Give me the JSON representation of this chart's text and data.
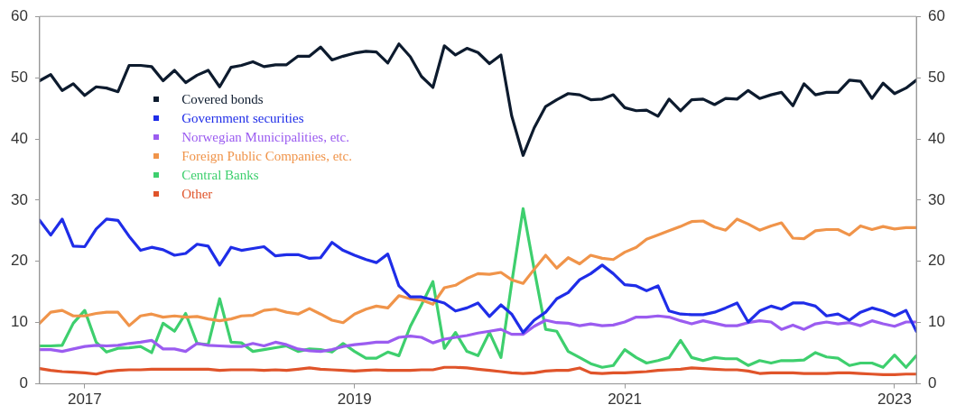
{
  "chart_data": {
    "type": "line",
    "legend": "top left",
    "marker": "none",
    "line_style": "solid",
    "grid": false,
    "x": [
      "2016-09",
      "2016-10",
      "2016-11",
      "2016-12",
      "2017-01",
      "2017-02",
      "2017-03",
      "2017-04",
      "2017-05",
      "2017-06",
      "2017-07",
      "2017-08",
      "2017-09",
      "2017-10",
      "2017-11",
      "2017-12",
      "2018-01",
      "2018-02",
      "2018-03",
      "2018-04",
      "2018-05",
      "2018-06",
      "2018-07",
      "2018-08",
      "2018-09",
      "2018-10",
      "2018-11",
      "2018-12",
      "2019-01",
      "2019-02",
      "2019-03",
      "2019-04",
      "2019-05",
      "2019-06",
      "2019-07",
      "2019-08",
      "2019-09",
      "2019-10",
      "2019-11",
      "2019-12",
      "2020-01",
      "2020-02",
      "2020-03",
      "2020-04",
      "2020-05",
      "2020-06",
      "2020-07",
      "2020-08",
      "2020-09",
      "2020-10",
      "2020-11",
      "2020-12",
      "2021-01",
      "2021-02",
      "2021-03",
      "2021-04",
      "2021-05",
      "2021-06",
      "2021-07",
      "2021-08",
      "2021-09",
      "2021-10",
      "2021-11",
      "2021-12",
      "2022-01",
      "2022-02",
      "2022-03",
      "2022-04",
      "2022-05",
      "2022-06",
      "2022-07",
      "2022-08",
      "2022-09",
      "2022-10",
      "2022-11",
      "2022-12",
      "2023-01",
      "2023-02",
      "2023-03"
    ],
    "xlim": [
      "2016-09",
      "2023-03"
    ],
    "xticks": [
      {
        "value": "2017-01",
        "label": "2017"
      },
      {
        "value": "2019-01",
        "label": "2019"
      },
      {
        "value": "2021-01",
        "label": "2021"
      },
      {
        "value": "2023-01",
        "label": "2023"
      }
    ],
    "ylim": [
      0,
      60
    ],
    "yticks": [
      0,
      10,
      20,
      30,
      40,
      50,
      60
    ],
    "y2lim": [
      0,
      60
    ],
    "y2ticks": [
      0,
      10,
      20,
      30,
      40,
      50,
      60
    ],
    "series": [
      {
        "name": "Covered bonds",
        "color": "#0d1b2e",
        "values": [
          49.5,
          50.5,
          47.9,
          49,
          47.1,
          48.5,
          48.3,
          47.7,
          52,
          52,
          51.8,
          49.5,
          51.2,
          49.2,
          50.4,
          51.2,
          48.5,
          51.7,
          52,
          52.6,
          51.8,
          52.1,
          52.1,
          53.5,
          53.5,
          55,
          52.9,
          53.5,
          54.0,
          54.3,
          54.2,
          52.4,
          55.5,
          53.4,
          50.2,
          48.4,
          55.2,
          53.7,
          54.8,
          54.1,
          52.3,
          53.7,
          43.8,
          37.3,
          41.8,
          45.3,
          46.4,
          47.4,
          47.2,
          46.4,
          46.5,
          47.2,
          45.1,
          44.6,
          44.7,
          43.7,
          46.5,
          44.6,
          46.4,
          46.5,
          45.6,
          46.6,
          46.5,
          47.9,
          46.6,
          47.2,
          47.6,
          45.4,
          49.0,
          47.2,
          47.6,
          47.6,
          49.6,
          49.4,
          46.6,
          49.1,
          47.4,
          48.3,
          49.6
        ]
      },
      {
        "name": "Government securities",
        "color": "#1f2de8",
        "values": [
          26.7,
          24.3,
          26.9,
          22.5,
          22.4,
          25.3,
          26.9,
          26.7,
          24.1,
          21.8,
          22.3,
          21.9,
          21.0,
          21.3,
          22.8,
          22.5,
          19.4,
          22.3,
          21.8,
          22.1,
          22.4,
          20.9,
          21.1,
          21.1,
          20.5,
          20.6,
          23.1,
          21.8,
          21.0,
          20.3,
          19.8,
          21.2,
          16.0,
          14.2,
          14.2,
          13.7,
          13.2,
          11.9,
          12.4,
          13.2,
          11.0,
          12.9,
          11.4,
          8.4,
          10.4,
          11.7,
          13.9,
          14.9,
          17.0,
          18.0,
          19.4,
          18.0,
          16.2,
          16.0,
          15.2,
          16.0,
          11.9,
          11.4,
          11.3,
          11.3,
          11.7,
          12.4,
          13.2,
          10.1,
          11.9,
          12.7,
          12.2,
          13.2,
          13.2,
          12.7,
          11.1,
          11.4,
          10.4,
          11.7,
          12.4,
          11.9,
          11.1,
          12.0,
          8.6
        ]
      },
      {
        "name": "Norwegian Municipalities, etc.",
        "color": "#9b5cf0",
        "values": [
          5.6,
          5.6,
          5.3,
          5.7,
          6.1,
          6.3,
          6.2,
          6.3,
          6.6,
          6.8,
          7.1,
          5.7,
          5.7,
          5.3,
          6.6,
          6.3,
          6.2,
          6.1,
          6.1,
          6.6,
          6.2,
          6.8,
          6.4,
          5.7,
          5.4,
          5.3,
          5.6,
          6.1,
          6.4,
          6.6,
          6.8,
          6.8,
          7.6,
          7.8,
          7.6,
          6.7,
          7.3,
          7.6,
          7.9,
          8.3,
          8.6,
          8.9,
          8.1,
          8.1,
          9.4,
          10.4,
          10.0,
          9.9,
          9.5,
          9.8,
          9.5,
          9.6,
          10.1,
          10.9,
          10.9,
          11.1,
          10.9,
          10.3,
          9.8,
          10.3,
          9.9,
          9.5,
          9.5,
          10.0,
          10.3,
          10.1,
          8.9,
          9.6,
          8.9,
          9.8,
          10.1,
          9.8,
          10.0,
          9.5,
          10.3,
          9.8,
          9.4,
          10.1,
          10.1
        ]
      },
      {
        "name": "Foreign Public Companies, etc.",
        "color": "#f0944a",
        "values": [
          9.9,
          11.7,
          12.0,
          11.1,
          11.1,
          11.5,
          11.7,
          11.7,
          9.5,
          11.1,
          11.4,
          10.9,
          11.1,
          10.9,
          11.0,
          10.6,
          10.3,
          10.6,
          11.1,
          11.2,
          12.0,
          12.2,
          11.7,
          11.4,
          12.3,
          11.4,
          10.4,
          10.0,
          11.4,
          12.2,
          12.7,
          12.4,
          14.4,
          13.9,
          13.7,
          13.0,
          15.7,
          16.1,
          17.2,
          18.0,
          17.9,
          18.2,
          17.0,
          16.4,
          18.7,
          21.0,
          18.9,
          20.6,
          19.6,
          21.0,
          20.5,
          20.3,
          21.5,
          22.3,
          23.6,
          24.3,
          25.0,
          25.7,
          26.5,
          26.6,
          25.6,
          25.1,
          26.9,
          26.1,
          25.1,
          25.8,
          26.3,
          23.8,
          23.7,
          25.0,
          25.2,
          25.2,
          24.3,
          25.8,
          25.2,
          25.7,
          25.3,
          25.5,
          25.5
        ]
      },
      {
        "name": "Central Banks",
        "color": "#3ecf6e",
        "values": [
          6.2,
          6.2,
          6.3,
          9.9,
          12.0,
          6.8,
          5.2,
          5.8,
          5.9,
          6.1,
          5.1,
          9.9,
          8.6,
          11.5,
          6.6,
          6.4,
          13.9,
          6.8,
          6.7,
          5.3,
          5.6,
          5.9,
          6.2,
          5.3,
          5.7,
          5.6,
          5.2,
          6.6,
          5.3,
          4.2,
          4.2,
          5.2,
          4.6,
          9.4,
          12.9,
          16.7,
          5.8,
          8.4,
          5.3,
          4.6,
          8.4,
          4.3,
          16.4,
          28.6,
          18.7,
          8.9,
          8.6,
          5.3,
          4.3,
          3.3,
          2.7,
          3.0,
          5.6,
          4.3,
          3.4,
          3.8,
          4.3,
          7.1,
          4.3,
          3.8,
          4.3,
          4.1,
          4.1,
          3.0,
          3.8,
          3.4,
          3.8,
          3.8,
          3.9,
          5.1,
          4.4,
          4.2,
          3.0,
          3.4,
          3.4,
          2.7,
          4.7,
          2.7,
          4.6
        ]
      },
      {
        "name": "Other",
        "color": "#e0542a",
        "values": [
          2.5,
          2.2,
          2.0,
          1.9,
          1.8,
          1.6,
          2.0,
          2.2,
          2.3,
          2.3,
          2.4,
          2.4,
          2.4,
          2.4,
          2.4,
          2.4,
          2.2,
          2.3,
          2.3,
          2.3,
          2.2,
          2.3,
          2.2,
          2.4,
          2.6,
          2.4,
          2.3,
          2.2,
          2.1,
          2.2,
          2.3,
          2.2,
          2.2,
          2.2,
          2.3,
          2.3,
          2.7,
          2.7,
          2.6,
          2.4,
          2.2,
          2.0,
          1.8,
          1.7,
          1.8,
          2.1,
          2.2,
          2.2,
          2.6,
          1.8,
          1.7,
          1.8,
          1.8,
          1.9,
          2.0,
          2.2,
          2.3,
          2.4,
          2.6,
          2.5,
          2.4,
          2.3,
          2.3,
          2.1,
          1.7,
          1.8,
          1.8,
          1.8,
          1.7,
          1.7,
          1.7,
          1.8,
          1.8,
          1.7,
          1.6,
          1.5,
          1.5,
          1.6,
          1.6
        ]
      }
    ]
  }
}
